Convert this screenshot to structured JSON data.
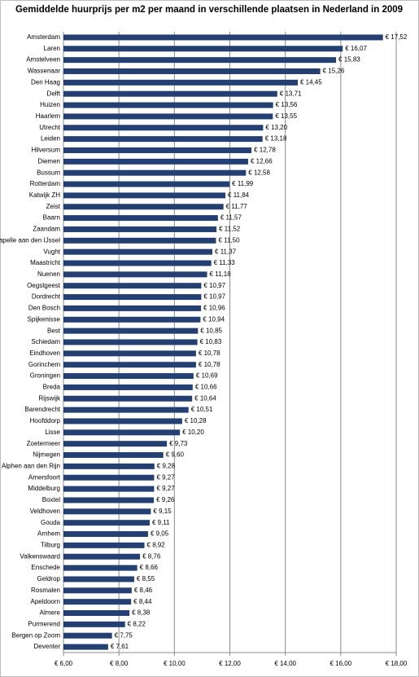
{
  "chart_data": {
    "type": "bar",
    "orientation": "horizontal",
    "title": "Gemiddelde huurprijs per m2 per maand in verschillende plaatsen in Nederland in 2009",
    "categories": [
      "Amsterdam",
      "Laren",
      "Amstelveen",
      "Wassenaar",
      "Den Haag",
      "Delft",
      "Huizen",
      "Haarlem",
      "Utrecht",
      "Leiden",
      "Hilversum",
      "Diemen",
      "Bussum",
      "Rotterdam",
      "Katwijk ZH",
      "Zeist",
      "Baarn",
      "Zaandam",
      "Capelle aan den IJssel",
      "Vught",
      "Maastricht",
      "Nuenen",
      "Oegstgeest",
      "Dordrecht",
      "Den Bosch",
      "Spijkenisse",
      "Best",
      "Schiedam",
      "Eindhoven",
      "Gorinchem",
      "Groningen",
      "Breda",
      "Rijswijk",
      "Barendrecht",
      "Hoofddorp",
      "Lisse",
      "Zoetermeer",
      "Nijmegen",
      "Alphen aan den Rijn",
      "Amersfoort",
      "Middelburg",
      "Boxtel",
      "Veldhoven",
      "Gouda",
      "Arnhem",
      "Tilburg",
      "Valkenswaard",
      "Enschede",
      "Geldrop",
      "Rosmalen",
      "Apeldoorn",
      "Almere",
      "Purmerend",
      "Bergen op Zoom",
      "Deventer"
    ],
    "values": [
      17.52,
      16.07,
      15.83,
      15.26,
      14.45,
      13.71,
      13.56,
      13.55,
      13.2,
      13.18,
      12.78,
      12.66,
      12.58,
      11.99,
      11.84,
      11.77,
      11.57,
      11.52,
      11.5,
      11.37,
      11.33,
      11.18,
      10.97,
      10.97,
      10.96,
      10.94,
      10.85,
      10.83,
      10.78,
      10.78,
      10.69,
      10.66,
      10.64,
      10.51,
      10.28,
      10.2,
      9.73,
      9.6,
      9.28,
      9.27,
      9.27,
      9.26,
      9.15,
      9.11,
      9.05,
      8.92,
      8.76,
      8.66,
      8.55,
      8.46,
      8.44,
      8.38,
      8.22,
      7.75,
      7.61
    ],
    "value_labels": [
      "€ 17,52",
      "€ 16,07",
      "€ 15,83",
      "€ 15,26",
      "€ 14,45",
      "€ 13,71",
      "€ 13,56",
      "€ 13,55",
      "€ 13,20",
      "€ 13,18",
      "€ 12,78",
      "€ 12,66",
      "€ 12,58",
      "€ 11,99",
      "€ 11,84",
      "€ 11,77",
      "€ 11,57",
      "€ 11,52",
      "€ 11,50",
      "€ 11,37",
      "€ 11,33",
      "€ 11,18",
      "€ 10,97",
      "€ 10,97",
      "€ 10,96",
      "€ 10,94",
      "€ 10,85",
      "€ 10,83",
      "€ 10,78",
      "€ 10,78",
      "€ 10,69",
      "€ 10,66",
      "€ 10,64",
      "€ 10,51",
      "€ 10,28",
      "€ 10,20",
      "€ 9,73",
      "€ 9,60",
      "€ 9,28",
      "€ 9,27",
      "€ 9,27",
      "€ 9,26",
      "€ 9,15",
      "€ 9,11",
      "€ 9,05",
      "€ 8,92",
      "€ 8,76",
      "€ 8,66",
      "€ 8,55",
      "€ 8,46",
      "€ 8,44",
      "€ 8,38",
      "€ 8,22",
      "€ 7,75",
      "€ 7,61"
    ],
    "color": "#243f72",
    "xlim": [
      6,
      18
    ],
    "xticks": [
      {
        "value": 6,
        "label": "€ 6,00"
      },
      {
        "value": 8,
        "label": "€ 8,00"
      },
      {
        "value": 10,
        "label": "€ 10,00"
      },
      {
        "value": 12,
        "label": "€ 12,00"
      },
      {
        "value": 14,
        "label": "€ 14,00"
      },
      {
        "value": 16,
        "label": "€ 16,00"
      },
      {
        "value": 18,
        "label": "€ 18,00"
      }
    ],
    "grid": true
  }
}
